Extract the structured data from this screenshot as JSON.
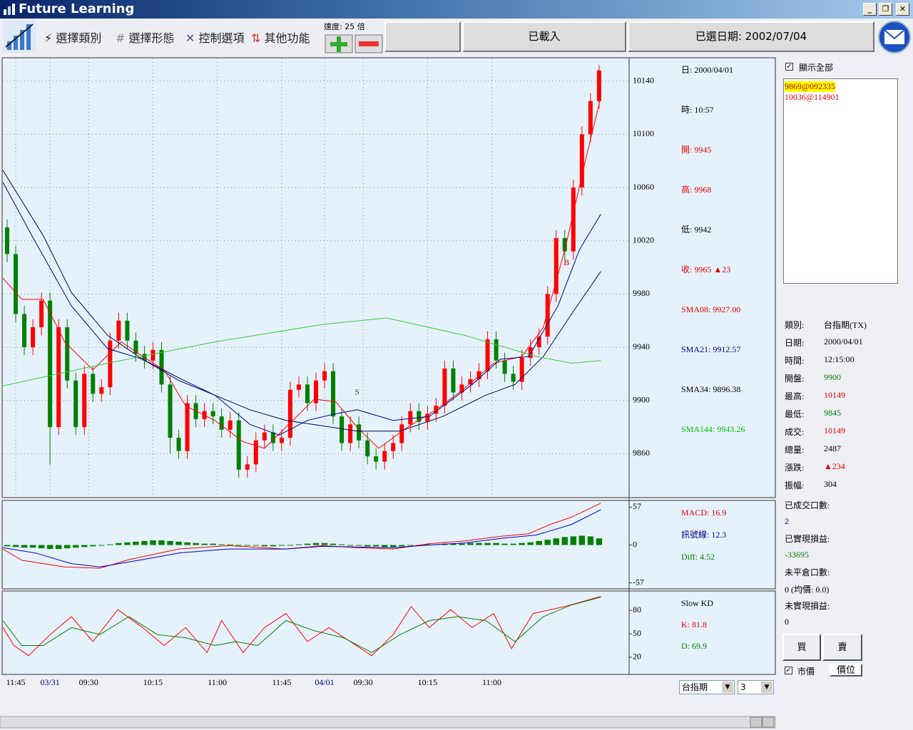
{
  "window": {
    "title": "Future Learning"
  },
  "toolbar": {
    "menus": [
      "選擇類別",
      "選擇形態",
      "控制選項",
      "其他功能"
    ],
    "speed": "速度: 25 倍",
    "status": "已載入",
    "date": "已選日期: 2002/07/04"
  },
  "info": {
    "main": [
      "日: 2000/04/01",
      "時: 10:57",
      "開: 9945",
      "高: 9968",
      "低: 9942",
      "收: 9965 ▲23",
      "SMA08: 9927.00",
      "SMA21: 9912.57",
      "SMA34: 9896.38",
      "SMA144: 9943.26"
    ],
    "macd": [
      "MACD: 16.9",
      "訊號線: 12.3",
      "Diff: 4.52"
    ],
    "kd": [
      "Slow KD",
      "K: 81.8",
      "D: 69.9"
    ]
  },
  "chart_data": [
    {
      "type": "candlestick",
      "x": [
        0,
        1,
        2,
        3,
        4,
        5,
        6,
        7,
        8,
        9,
        10,
        11,
        12,
        13,
        14,
        15,
        16,
        17,
        18,
        19,
        20,
        21,
        22,
        23,
        24,
        25,
        26,
        27,
        28,
        29,
        30,
        31,
        32,
        33,
        34,
        35,
        36,
        37,
        38,
        39,
        40,
        41,
        42,
        43,
        44,
        45,
        46,
        47,
        48,
        49,
        50,
        51,
        52,
        53,
        54,
        55,
        56,
        57,
        58,
        59,
        60,
        61,
        62,
        63,
        64,
        65,
        66,
        67,
        68,
        69
      ],
      "open": [
        10030,
        10010,
        9965,
        9940,
        9955,
        9975,
        9880,
        9955,
        9915,
        9880,
        9920,
        9905,
        9910,
        9945,
        9960,
        9945,
        9935,
        9930,
        9938,
        9912,
        9872,
        9862,
        9898,
        9886,
        9892,
        9888,
        9878,
        9885,
        9848,
        9852,
        9870,
        9876,
        9868,
        9872,
        9908,
        9912,
        9898,
        9915,
        9922,
        9888,
        9868,
        9882,
        9870,
        9858,
        9854,
        9862,
        9868,
        9882,
        9892,
        9884,
        9890,
        9896,
        9924,
        9906,
        9912,
        9916,
        9922,
        9946,
        9930,
        9920,
        9914,
        9932,
        9940,
        9948,
        9980,
        10022,
        10012,
        10060,
        10100,
        10125
      ],
      "high": [
        10036,
        10016,
        9971,
        9961,
        9981,
        9981,
        9961,
        9961,
        9921,
        9926,
        9926,
        9916,
        9951,
        9966,
        9966,
        9951,
        9941,
        9944,
        9944,
        9918,
        9878,
        9904,
        9904,
        9898,
        9898,
        9894,
        9891,
        9891,
        9858,
        9876,
        9882,
        9882,
        9878,
        9914,
        9918,
        9918,
        9921,
        9928,
        9928,
        9894,
        9888,
        9888,
        9876,
        9864,
        9868,
        9874,
        9888,
        9898,
        9898,
        9896,
        9902,
        9930,
        9930,
        9918,
        9922,
        9928,
        9952,
        9952,
        9936,
        9926,
        9938,
        9946,
        9954,
        9986,
        10028,
        10028,
        10066,
        10106,
        10131,
        10152
      ],
      "low": [
        10004,
        9959,
        9934,
        9934,
        9949,
        9852,
        9874,
        9909,
        9874,
        9874,
        9899,
        9899,
        9904,
        9939,
        9939,
        9929,
        9924,
        9924,
        9906,
        9860,
        9856,
        9856,
        9880,
        9880,
        9882,
        9872,
        9872,
        9842,
        9842,
        9846,
        9864,
        9862,
        9862,
        9866,
        9902,
        9892,
        9892,
        9909,
        9882,
        9862,
        9862,
        9864,
        9852,
        9848,
        9848,
        9856,
        9862,
        9876,
        9878,
        9878,
        9884,
        9890,
        9900,
        9900,
        9906,
        9910,
        9916,
        9924,
        9914,
        9908,
        9908,
        9926,
        9934,
        9942,
        9974,
        10006,
        10006,
        10054,
        10094,
        10119
      ],
      "close": [
        10010,
        9965,
        9940,
        9955,
        9975,
        9880,
        9955,
        9915,
        9880,
        9920,
        9905,
        9910,
        9945,
        9960,
        9945,
        9935,
        9930,
        9938,
        9912,
        9872,
        9862,
        9898,
        9886,
        9892,
        9888,
        9878,
        9885,
        9848,
        9852,
        9870,
        9876,
        9868,
        9872,
        9908,
        9912,
        9898,
        9915,
        9922,
        9888,
        9868,
        9882,
        9870,
        9858,
        9854,
        9862,
        9868,
        9882,
        9892,
        9884,
        9890,
        9896,
        9924,
        9906,
        9912,
        9916,
        9922,
        9946,
        9930,
        9920,
        9914,
        9932,
        9940,
        9948,
        9980,
        10022,
        10012,
        10060,
        10100,
        10125,
        10148
      ],
      "up_color": "#ff0000",
      "down_color": "#008000",
      "xlim": [
        -0.5,
        72.5
      ],
      "ylim": [
        9827,
        10157
      ],
      "yticks": [
        9860,
        9900,
        9940,
        9980,
        10020,
        10060,
        10100,
        10140
      ],
      "xticks": [
        {
          "value": 1,
          "label": "11:45"
        },
        {
          "value": 5,
          "label": "03/31"
        },
        {
          "value": 9.5,
          "label": "09:30"
        },
        {
          "value": 17,
          "label": "10:15"
        },
        {
          "value": 24.5,
          "label": "11:00"
        },
        {
          "value": 32,
          "label": "11:45"
        },
        {
          "value": 37,
          "label": "04/01"
        },
        {
          "value": 41.5,
          "label": "09:30"
        },
        {
          "value": 49,
          "label": "10:15"
        },
        {
          "value": 56.5,
          "label": "11:00"
        }
      ],
      "grid": true,
      "lines": [
        {
          "color": "#ff0000",
          "x": [
            -0.5,
            1.7,
            4.2,
            6.7,
            10,
            13.3,
            15.8,
            18.3,
            20.8,
            24.2,
            27.5,
            30,
            32.5,
            35.8,
            38.3,
            40.8,
            43.3,
            46.7,
            50,
            53.3,
            56.7,
            60,
            62.5,
            65,
            67.5,
            69.2
          ],
          "values": [
            9992,
            9976,
            9976,
            9944,
            9923,
            9944,
            9933,
            9923,
            9896,
            9885,
            9869,
            9864,
            9880,
            9901,
            9899,
            9880,
            9864,
            9880,
            9893,
            9909,
            9928,
            9933,
            9955,
            10013,
            10083,
            10128
          ]
        },
        {
          "color": "#00008b",
          "x": [
            -0.5,
            3.3,
            7.5,
            11.7,
            15.8,
            20,
            24.2,
            28.3,
            31.7,
            35,
            38.3,
            40.8,
            45,
            49.2,
            54.2,
            57.5,
            60.8,
            64.2,
            66.7,
            69.2
          ],
          "values": [
            10064,
            10019,
            9971,
            9939,
            9931,
            9917,
            9904,
            9882,
            9874,
            9885,
            9890,
            9893,
            9885,
            9888,
            9912,
            9931,
            9933,
            9971,
            10013,
            10040
          ]
        },
        {
          "color": "#000060",
          "x": [
            -0.5,
            4.2,
            7.5,
            11.7,
            15.8,
            20,
            24.2,
            28.3,
            32.5,
            36.7,
            40.8,
            45.8,
            50.8,
            55.8,
            59.2,
            62.5,
            65.8,
            69.2
          ],
          "values": [
            10073,
            10024,
            9981,
            9949,
            9931,
            9915,
            9904,
            9893,
            9885,
            9881,
            9877,
            9877,
            9888,
            9904,
            9912,
            9933,
            9965,
            9997
          ]
        },
        {
          "color": "#33cc33",
          "x": [
            -0.5,
            11.7,
            24.2,
            36.7,
            44.2,
            53.3,
            61.7,
            65.8,
            69.2
          ],
          "values": [
            9911,
            9928,
            9944,
            9957,
            9962,
            9949,
            9933,
            9928,
            9930
          ]
        }
      ],
      "annotations": [
        {
          "text": "S",
          "x": 40.8,
          "y": 9906,
          "color": "#008000"
        },
        {
          "text": "B",
          "x": 65.2,
          "y": 10003,
          "color": "#cc0000"
        }
      ]
    },
    {
      "type": "macd",
      "xlim": [
        -0.5,
        72.5
      ],
      "ylim": [
        -66,
        66
      ],
      "yticks": [
        57,
        0,
        -57
      ],
      "histogram": {
        "color": "#008000",
        "values": [
          -2,
          -3,
          -4,
          -4,
          -5,
          -6,
          -6,
          -5,
          -4,
          -3,
          -2,
          -1,
          1,
          3,
          4,
          5,
          6,
          7,
          7,
          6,
          5,
          4,
          3,
          2,
          2,
          1,
          1,
          0,
          -1,
          -1,
          -2,
          -2,
          -1,
          0,
          1,
          2,
          3,
          3,
          2,
          1,
          0,
          -1,
          -2,
          -2,
          -3,
          -3,
          -2,
          -1,
          0,
          1,
          1,
          2,
          2,
          2,
          3,
          3,
          3,
          3,
          2,
          2,
          3,
          4,
          6,
          8,
          10,
          12,
          13,
          14,
          13,
          10
        ]
      },
      "series": [
        {
          "color": "#ff0000",
          "x": [
            -0.5,
            1.7,
            6.7,
            10.8,
            14.2,
            20,
            25.8,
            32.5,
            36.7,
            40.8,
            45,
            49.2,
            53.3,
            57.5,
            60.8,
            63.3,
            65.8,
            69.2
          ],
          "values": [
            -6,
            -23,
            -33,
            -35,
            -22,
            -6,
            -1,
            -6,
            -1,
            -4,
            -6,
            2,
            6,
            13,
            17,
            31,
            42,
            63
          ]
        },
        {
          "color": "#0000cc",
          "x": [
            -0.5,
            3.3,
            7.5,
            10.8,
            15.8,
            20,
            25.8,
            32.5,
            36.7,
            40.8,
            45,
            49.2,
            53.3,
            57.5,
            61.7,
            65.8,
            69.2
          ],
          "values": [
            -4,
            -12,
            -28,
            -33,
            -22,
            -12,
            -6,
            -6,
            -2,
            -3,
            -4,
            0,
            3,
            10,
            15,
            31,
            53
          ]
        }
      ]
    },
    {
      "type": "kd",
      "xlim": [
        -0.5,
        72.5
      ],
      "ylim": [
        -2,
        104
      ],
      "yticks": [
        80,
        50,
        20
      ],
      "series": [
        {
          "color": "#ff0000",
          "x": [
            -0.5,
            0.8,
            2.5,
            5,
            7.5,
            10,
            12.9,
            15.8,
            18.3,
            20.8,
            23.3,
            25,
            27.5,
            30,
            32.5,
            35,
            37.5,
            40,
            42.5,
            45,
            47.1,
            49.2,
            51.7,
            54.2,
            56.7,
            58.8,
            61.3,
            65,
            69.2
          ],
          "values": [
            58,
            35,
            22,
            49,
            72,
            40,
            81,
            58,
            35,
            58,
            26,
            67,
            26,
            58,
            76,
            40,
            58,
            40,
            22,
            49,
            85,
            58,
            81,
            58,
            76,
            31,
            76,
            85,
            98
          ]
        },
        {
          "color": "#008000",
          "x": [
            -0.5,
            1.7,
            4.2,
            7.5,
            10.8,
            14.2,
            17.5,
            20.8,
            24.2,
            26.7,
            29.2,
            32.5,
            35.8,
            39.2,
            42.5,
            45.8,
            49.2,
            52.5,
            55.8,
            59.2,
            62.5,
            65.8,
            69.2
          ],
          "values": [
            67,
            35,
            35,
            58,
            49,
            72,
            49,
            45,
            35,
            40,
            35,
            67,
            54,
            45,
            26,
            49,
            67,
            72,
            67,
            40,
            72,
            87,
            97
          ]
        }
      ]
    }
  ],
  "side": {
    "show_all": "顯示全部",
    "orders": [
      "9869@092335",
      "10036@114901"
    ],
    "stats": [
      [
        "類別:",
        "台指期(TX)"
      ],
      [
        "日期:",
        "2000/04/01"
      ],
      [
        "時間:",
        "12:15:00"
      ],
      [
        "開盤:",
        "9900"
      ],
      [
        "最高:",
        "10149"
      ],
      [
        "最低:",
        "9845"
      ],
      [
        "成交:",
        "10149"
      ],
      [
        "總量:",
        "2487"
      ],
      [
        "漲跌:",
        "▲234"
      ],
      [
        "振幅:",
        "304"
      ]
    ],
    "account": [
      [
        "已成交口數:",
        "2"
      ],
      [
        "已實現損益:",
        "-33695"
      ],
      [
        "未平倉口數:",
        "0 (均價: 0.0)"
      ],
      [
        "未實現損益:",
        "0"
      ]
    ],
    "buy": "買",
    "sell": "賣",
    "market": "市價",
    "price": "價位"
  },
  "bottom": {
    "product": "台指期",
    "period": "3"
  }
}
